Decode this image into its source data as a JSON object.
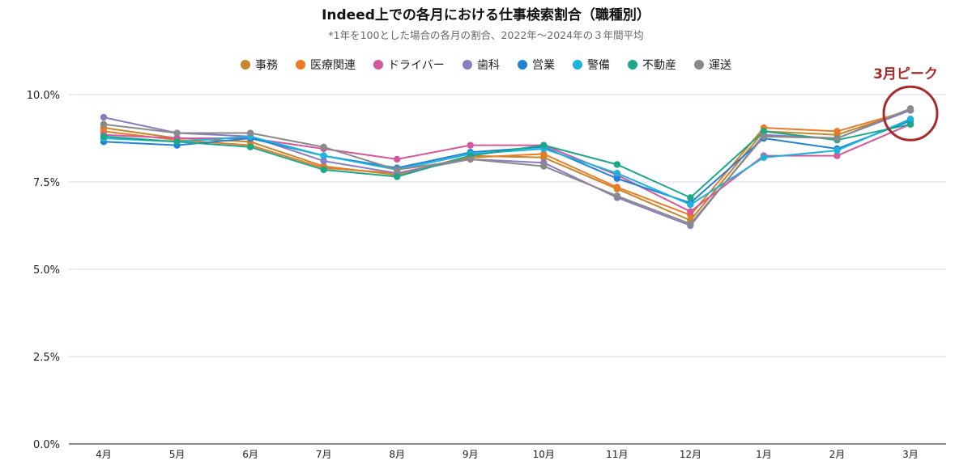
{
  "chart_data": {
    "type": "line",
    "title": "Indeed上での各月における仕事検索割合（職種別）",
    "subtitle": "*1年を100とした場合の各月の割合、2022年〜2024年の３年間平均",
    "categories": [
      "4月",
      "5月",
      "6月",
      "7月",
      "8月",
      "9月",
      "10月",
      "11月",
      "12月",
      "1月",
      "2月",
      "3月"
    ],
    "yticks": [
      "0.0%",
      "2.5%",
      "5.0%",
      "7.5%",
      "10.0%"
    ],
    "ylim": [
      0,
      10
    ],
    "legend_position": "top-center",
    "grid": true,
    "series": [
      {
        "name": "事務",
        "color": "#c8862b",
        "values": [
          9.05,
          8.75,
          8.65,
          7.95,
          7.7,
          8.25,
          8.2,
          7.3,
          6.4,
          8.95,
          8.85,
          9.55
        ]
      },
      {
        "name": "医療関連",
        "color": "#ec7a23",
        "values": [
          8.95,
          8.7,
          8.55,
          7.9,
          7.75,
          8.2,
          8.3,
          7.35,
          6.55,
          9.05,
          8.95,
          9.55
        ]
      },
      {
        "name": "ドライバー",
        "color": "#d6579c",
        "values": [
          8.85,
          8.75,
          8.75,
          8.45,
          8.15,
          8.55,
          8.55,
          7.7,
          6.65,
          8.25,
          8.25,
          9.15
        ]
      },
      {
        "name": "歯科",
        "color": "#8b7bc1",
        "values": [
          9.35,
          8.9,
          8.8,
          8.1,
          7.75,
          8.15,
          8.05,
          7.05,
          6.25,
          8.85,
          8.75,
          9.55
        ]
      },
      {
        "name": "営業",
        "color": "#2181d6",
        "values": [
          8.65,
          8.55,
          8.75,
          8.25,
          7.9,
          8.35,
          8.5,
          7.6,
          6.9,
          8.75,
          8.45,
          9.25
        ]
      },
      {
        "name": "警備",
        "color": "#1cb4dd",
        "values": [
          8.75,
          8.65,
          8.8,
          8.25,
          7.85,
          8.3,
          8.45,
          7.75,
          6.85,
          8.2,
          8.4,
          9.3
        ]
      },
      {
        "name": "不動産",
        "color": "#1aa88a",
        "values": [
          8.8,
          8.65,
          8.5,
          7.85,
          7.65,
          8.25,
          8.55,
          8.0,
          7.05,
          8.95,
          8.7,
          9.15
        ]
      },
      {
        "name": "運送",
        "color": "#8a8a8a",
        "values": [
          9.15,
          8.9,
          8.9,
          8.5,
          7.85,
          8.15,
          7.95,
          7.1,
          6.3,
          8.8,
          8.75,
          9.6
        ]
      }
    ],
    "annotation": {
      "text": "3月ピーク",
      "color": "#a82a2a",
      "target_category": "3月"
    }
  }
}
